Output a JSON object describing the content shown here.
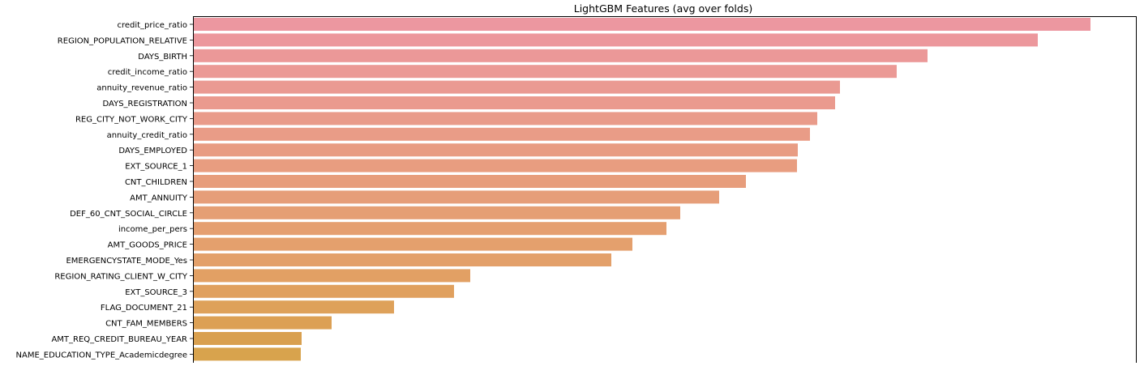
{
  "chart_data": {
    "type": "bar",
    "orientation": "horizontal",
    "title": "LightGBM Features (avg over folds)",
    "xlabel": "",
    "ylabel": "",
    "categories": [
      "credit_price_ratio",
      "REGION_POPULATION_RELATIVE",
      "DAYS_BIRTH",
      "credit_income_ratio",
      "annuity_revenue_ratio",
      "DAYS_REGISTRATION",
      "REG_CITY_NOT_WORK_CITY",
      "annuity_credit_ratio",
      "DAYS_EMPLOYED",
      "EXT_SOURCE_1",
      "CNT_CHILDREN",
      "AMT_ANNUITY",
      "DEF_60_CNT_SOCIAL_CIRCLE",
      "income_per_pers",
      "AMT_GOODS_PRICE",
      "EMERGENCYSTATE_MODE_Yes",
      "REGION_RATING_CLIENT_W_CITY",
      "EXT_SOURCE_3",
      "FLAG_DOCUMENT_21",
      "CNT_FAM_MEMBERS",
      "AMT_REQ_CREDIT_BUREAU_YEAR",
      "NAME_EDUCATION_TYPE_Academicdegree"
    ],
    "values": [
      1106,
      1041,
      905,
      867,
      797,
      791,
      769,
      760,
      745,
      744,
      681,
      648,
      600,
      583,
      541,
      515,
      341,
      321,
      247,
      170,
      133,
      132
    ],
    "xlim": [
      0,
      1163
    ],
    "grid": false,
    "legend": "none",
    "colors": [
      "#ec97a0",
      "#ec979c",
      "#eb9898",
      "#eb9995",
      "#ea9a92",
      "#ea9a8e",
      "#e99b8a",
      "#e99c87",
      "#e89c83",
      "#e89d80",
      "#e79d7c",
      "#e69e79",
      "#e59f74",
      "#e59f70",
      "#e4a06d",
      "#e3a06a",
      "#e2a064",
      "#e0a05e",
      "#dea15a",
      "#dca054",
      "#d9a04f",
      "#d8a34d"
    ]
  }
}
